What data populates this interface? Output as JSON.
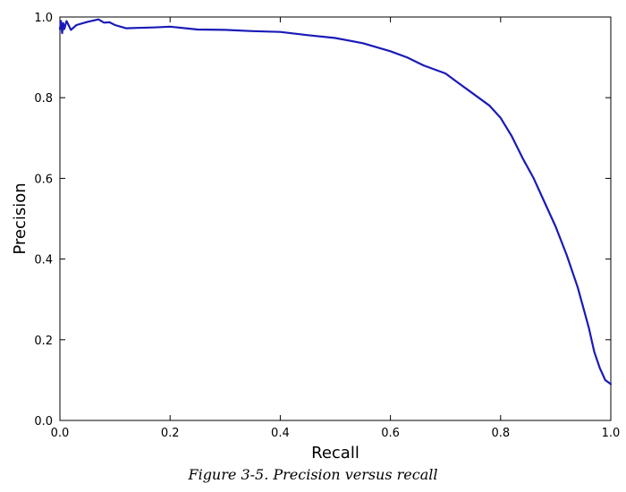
{
  "chart_data": {
    "type": "line",
    "title": "",
    "xlabel": "Recall",
    "ylabel": "Precision",
    "xlim": [
      0.0,
      1.0
    ],
    "ylim": [
      0.0,
      1.0
    ],
    "xticks": [
      "0.0",
      "0.2",
      "0.4",
      "0.6",
      "0.8",
      "1.0"
    ],
    "yticks": [
      "0.0",
      "0.2",
      "0.4",
      "0.6",
      "0.8",
      "1.0"
    ],
    "grid": false,
    "legend": "none",
    "line_color": "#1a1ab8",
    "series": [
      {
        "x": [
          0.0,
          0.002,
          0.004,
          0.006,
          0.008,
          0.012,
          0.02,
          0.03,
          0.05,
          0.07,
          0.08,
          0.09,
          0.1,
          0.12,
          0.14,
          0.17,
          0.2,
          0.25,
          0.3,
          0.35,
          0.4,
          0.45,
          0.5,
          0.55,
          0.6,
          0.63,
          0.66,
          0.7,
          0.72,
          0.75,
          0.78,
          0.8,
          0.82,
          0.84,
          0.86,
          0.88,
          0.9,
          0.92,
          0.94,
          0.95,
          0.96,
          0.97,
          0.98,
          0.99,
          1.0
        ],
        "y": [
          0.97,
          0.99,
          0.96,
          0.985,
          0.97,
          0.99,
          0.968,
          0.98,
          0.988,
          0.994,
          0.986,
          0.987,
          0.98,
          0.972,
          0.973,
          0.974,
          0.976,
          0.969,
          0.968,
          0.965,
          0.963,
          0.955,
          0.948,
          0.935,
          0.915,
          0.9,
          0.88,
          0.86,
          0.84,
          0.81,
          0.78,
          0.75,
          0.705,
          0.65,
          0.6,
          0.54,
          0.48,
          0.41,
          0.33,
          0.28,
          0.23,
          0.17,
          0.13,
          0.1,
          0.09
        ]
      }
    ]
  },
  "caption": "Figure 3-5. Precision versus recall"
}
